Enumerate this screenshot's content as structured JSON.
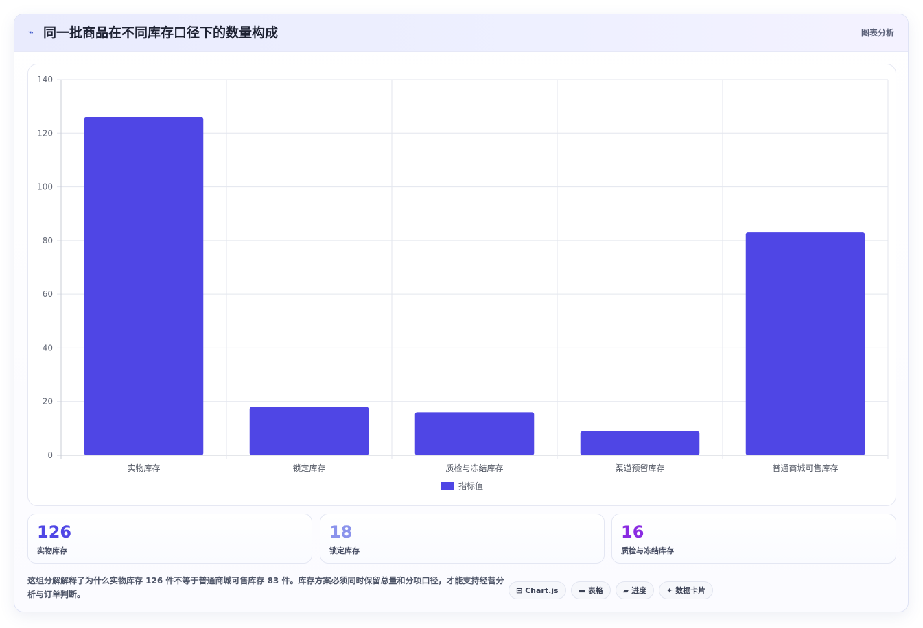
{
  "header": {
    "icon": "chart-line-icon",
    "title": "同一批商品在不同库存口径下的数量构成",
    "right_label": "图表分析"
  },
  "chart_data": {
    "type": "bar",
    "categories": [
      "实物库存",
      "锁定库存",
      "质检与冻结库存",
      "渠道预留库存",
      "普通商城可售库存"
    ],
    "series": [
      {
        "name": "指标值",
        "values": [
          126,
          18,
          16,
          9,
          83
        ]
      }
    ],
    "ylim": [
      0,
      140
    ],
    "yticks": [
      0,
      20,
      40,
      60,
      80,
      100,
      120,
      140
    ],
    "grid": true,
    "legend_position": "bottom",
    "bar_color": "#4f46e5"
  },
  "stats": [
    {
      "value": "126",
      "label": "实物库存",
      "color": "#4f46e5"
    },
    {
      "value": "18",
      "label": "锁定库存",
      "color": "#8b93ec"
    },
    {
      "value": "16",
      "label": "质检与冻结库存",
      "color": "#8a2be2"
    }
  ],
  "footer": {
    "text": "这组分解解释了为什么实物库存 126 件不等于普通商城可售库存 83 件。库存方案必须同时保留总量和分项口径，才能支持经营分析与订单判断。"
  },
  "chips": [
    {
      "icon": "⊟",
      "label": "Chart.js"
    },
    {
      "icon": "▬",
      "label": "表格"
    },
    {
      "icon": "▰",
      "label": "进度"
    },
    {
      "icon": "✦",
      "label": "数据卡片"
    }
  ]
}
